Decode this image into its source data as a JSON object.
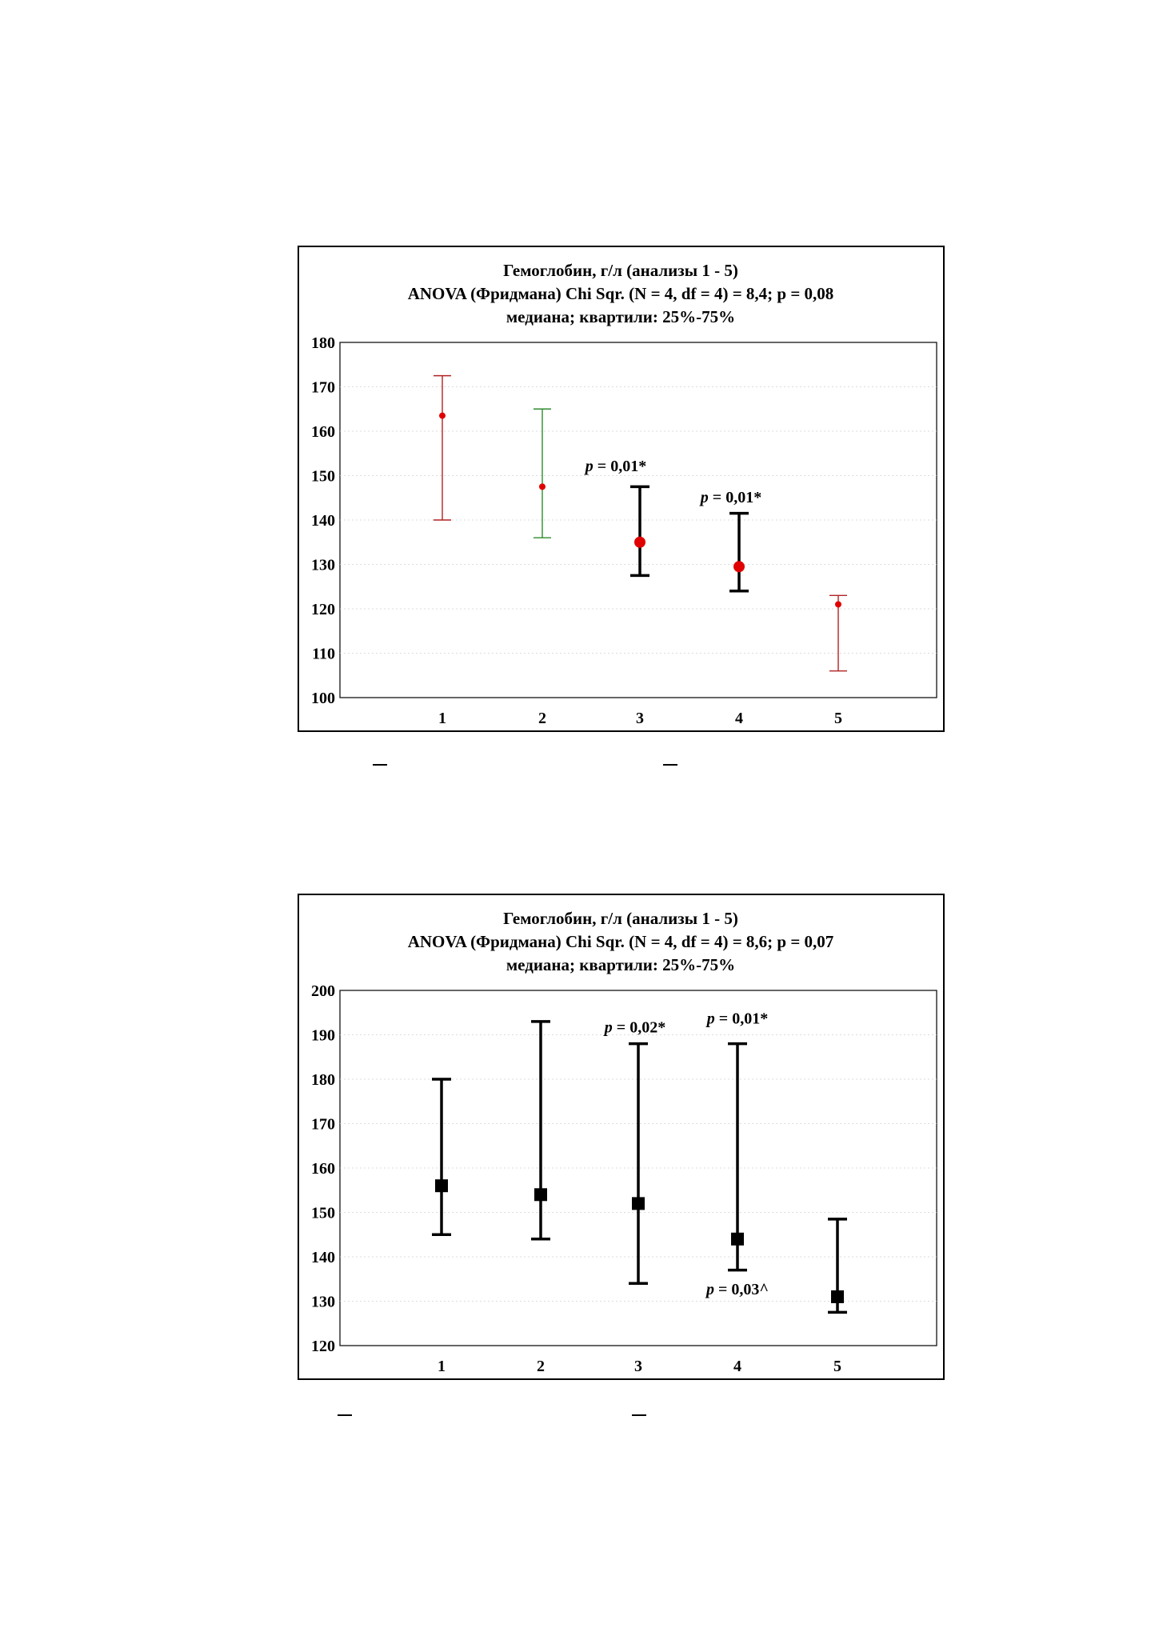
{
  "chart_data": [
    {
      "type": "error-bar",
      "title": [
        "Гемоглобин, г/л (анализы 1 - 5)",
        "ANOVA (Фридмана) Chi Sqr. (N = 4, df = 4) = 8,4; p = 0,08",
        "медиана; квартили: 25%-75%"
      ],
      "categories": [
        "1",
        "2",
        "3",
        "4",
        "5"
      ],
      "ylim": [
        100,
        180
      ],
      "yticks": [
        100,
        110,
        120,
        130,
        140,
        150,
        160,
        170,
        180
      ],
      "grid": true,
      "points": [
        {
          "x": "1",
          "median": 163.5,
          "q25": 140,
          "q75": 172.5,
          "color": "#b22222",
          "bold": false
        },
        {
          "x": "2",
          "median": 147.5,
          "q25": 136,
          "q75": 165,
          "color": "#2e8b2e",
          "bold": false
        },
        {
          "x": "3",
          "median": 135,
          "q25": 127.5,
          "q75": 147.5,
          "color": "#000000",
          "bold": true,
          "annotation": "p = 0,01*",
          "annotation_value": 151,
          "annotation_offset": -30
        },
        {
          "x": "4",
          "median": 129.5,
          "q25": 124,
          "q75": 141.5,
          "color": "#000000",
          "bold": true,
          "annotation": "p = 0,01*",
          "annotation_value": 144,
          "annotation_offset": -10
        },
        {
          "x": "5",
          "median": 121,
          "q25": 106,
          "q75": 123,
          "color": "#b22222",
          "bold": false
        }
      ],
      "marker": "circle",
      "median_color": "#e00000"
    },
    {
      "type": "error-bar",
      "title": [
        "Гемоглобин, г/л (анализы 1 - 5)",
        "ANOVA (Фридмана) Chi Sqr. (N = 4, df = 4) = 8,6; p = 0,07",
        "медиана; квартили: 25%-75%"
      ],
      "categories": [
        "1",
        "2",
        "3",
        "4",
        "5"
      ],
      "ylim": [
        120,
        200
      ],
      "yticks": [
        120,
        130,
        140,
        150,
        160,
        170,
        180,
        190,
        200
      ],
      "grid": true,
      "points": [
        {
          "x": "1",
          "median": 156,
          "q25": 145,
          "q75": 180,
          "color": "#000000",
          "bold": true
        },
        {
          "x": "2",
          "median": 154,
          "q25": 144,
          "q75": 193,
          "color": "#000000",
          "bold": true
        },
        {
          "x": "3",
          "median": 152,
          "q25": 134,
          "q75": 188,
          "color": "#000000",
          "bold": true,
          "annotation": "p = 0,02*",
          "annotation_value": 190.5,
          "annotation_offset": -4
        },
        {
          "x": "4",
          "median": 144,
          "q25": 137,
          "q75": 188,
          "color": "#000000",
          "bold": true,
          "annotation": "p = 0,01*",
          "annotation_value": 192.5,
          "annotation_offset": 0
        },
        {
          "x": "5",
          "median": 131,
          "q25": 127.5,
          "q75": 148.5,
          "color": "#000000",
          "bold": true,
          "annotation": "p = 0,03^",
          "annotation_value": 131.5,
          "annotation_offset": -125
        }
      ],
      "marker": "square",
      "median_color": "#000000"
    }
  ]
}
